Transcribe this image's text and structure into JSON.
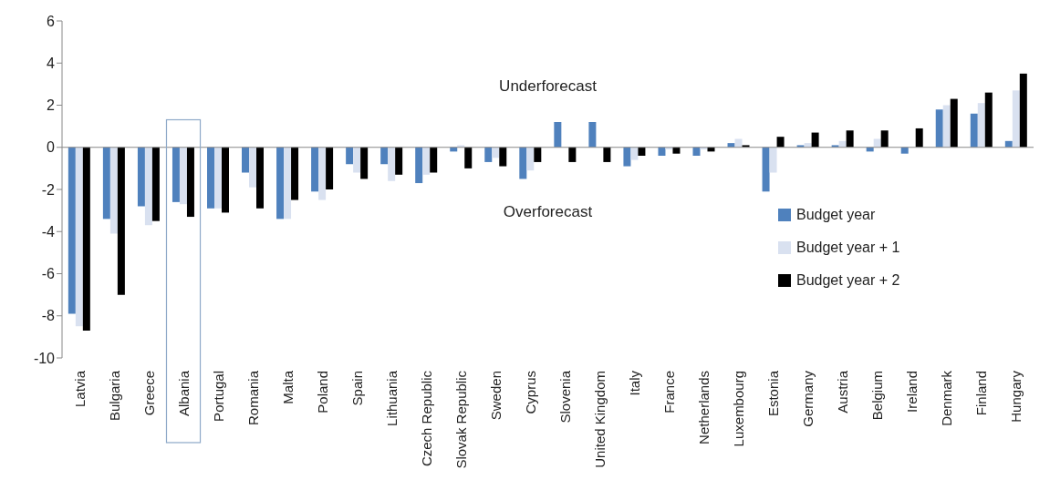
{
  "chart_data": {
    "type": "bar",
    "categories": [
      "Latvia",
      "Bulgaria",
      "Greece",
      "Albania",
      "Portugal",
      "Romania",
      "Malta",
      "Poland",
      "Spain",
      "Lithuania",
      "Czech Republic",
      "Slovak Republic",
      "Sweden",
      "Cyprus",
      "Slovenia",
      "United Kingdom",
      "Italy",
      "France",
      "Netherlands",
      "Luxembourg",
      "Estonia",
      "Germany",
      "Austria",
      "Belgium",
      "Ireland",
      "Denmark",
      "Finland",
      "Hungary"
    ],
    "series": [
      {
        "name": "Budget year",
        "color": "#4f81bd",
        "values": [
          -7.9,
          -3.4,
          -2.8,
          -2.6,
          -2.9,
          -1.2,
          -3.4,
          -2.1,
          -0.8,
          -0.8,
          -1.7,
          -0.2,
          -0.7,
          -1.5,
          1.2,
          1.2,
          -0.9,
          -0.4,
          -0.4,
          0.2,
          -2.1,
          0.1,
          0.1,
          -0.2,
          -0.3,
          1.8,
          1.6,
          0.3
        ]
      },
      {
        "name": "Budget year + 1",
        "color": "#d9e1f0",
        "values": [
          -8.5,
          -4.1,
          -3.7,
          -2.7,
          -2.9,
          -1.9,
          -3.4,
          -2.5,
          -1.2,
          -1.6,
          -1.3,
          0.1,
          -0.5,
          -1.1,
          0.0,
          0.0,
          -0.6,
          -0.1,
          -0.1,
          0.4,
          -1.2,
          0.2,
          0.3,
          0.4,
          0.0,
          2.0,
          2.1,
          2.7
        ]
      },
      {
        "name": "Budget year + 2",
        "color": "#000000",
        "values": [
          -8.7,
          -7.0,
          -3.5,
          -3.3,
          -3.1,
          -2.9,
          -2.5,
          -2.0,
          -1.5,
          -1.3,
          -1.2,
          -1.0,
          -0.9,
          -0.7,
          -0.7,
          -0.7,
          -0.4,
          -0.3,
          -0.2,
          0.1,
          0.5,
          0.7,
          0.8,
          0.8,
          0.9,
          2.3,
          2.6,
          3.5
        ]
      }
    ],
    "ylim": [
      -10,
      6
    ],
    "yticks": [
      -10,
      -8,
      -6,
      -4,
      -2,
      0,
      2,
      4,
      6
    ],
    "annotations": [
      "Underforecast",
      "Overforecast"
    ],
    "legend": "right"
  }
}
